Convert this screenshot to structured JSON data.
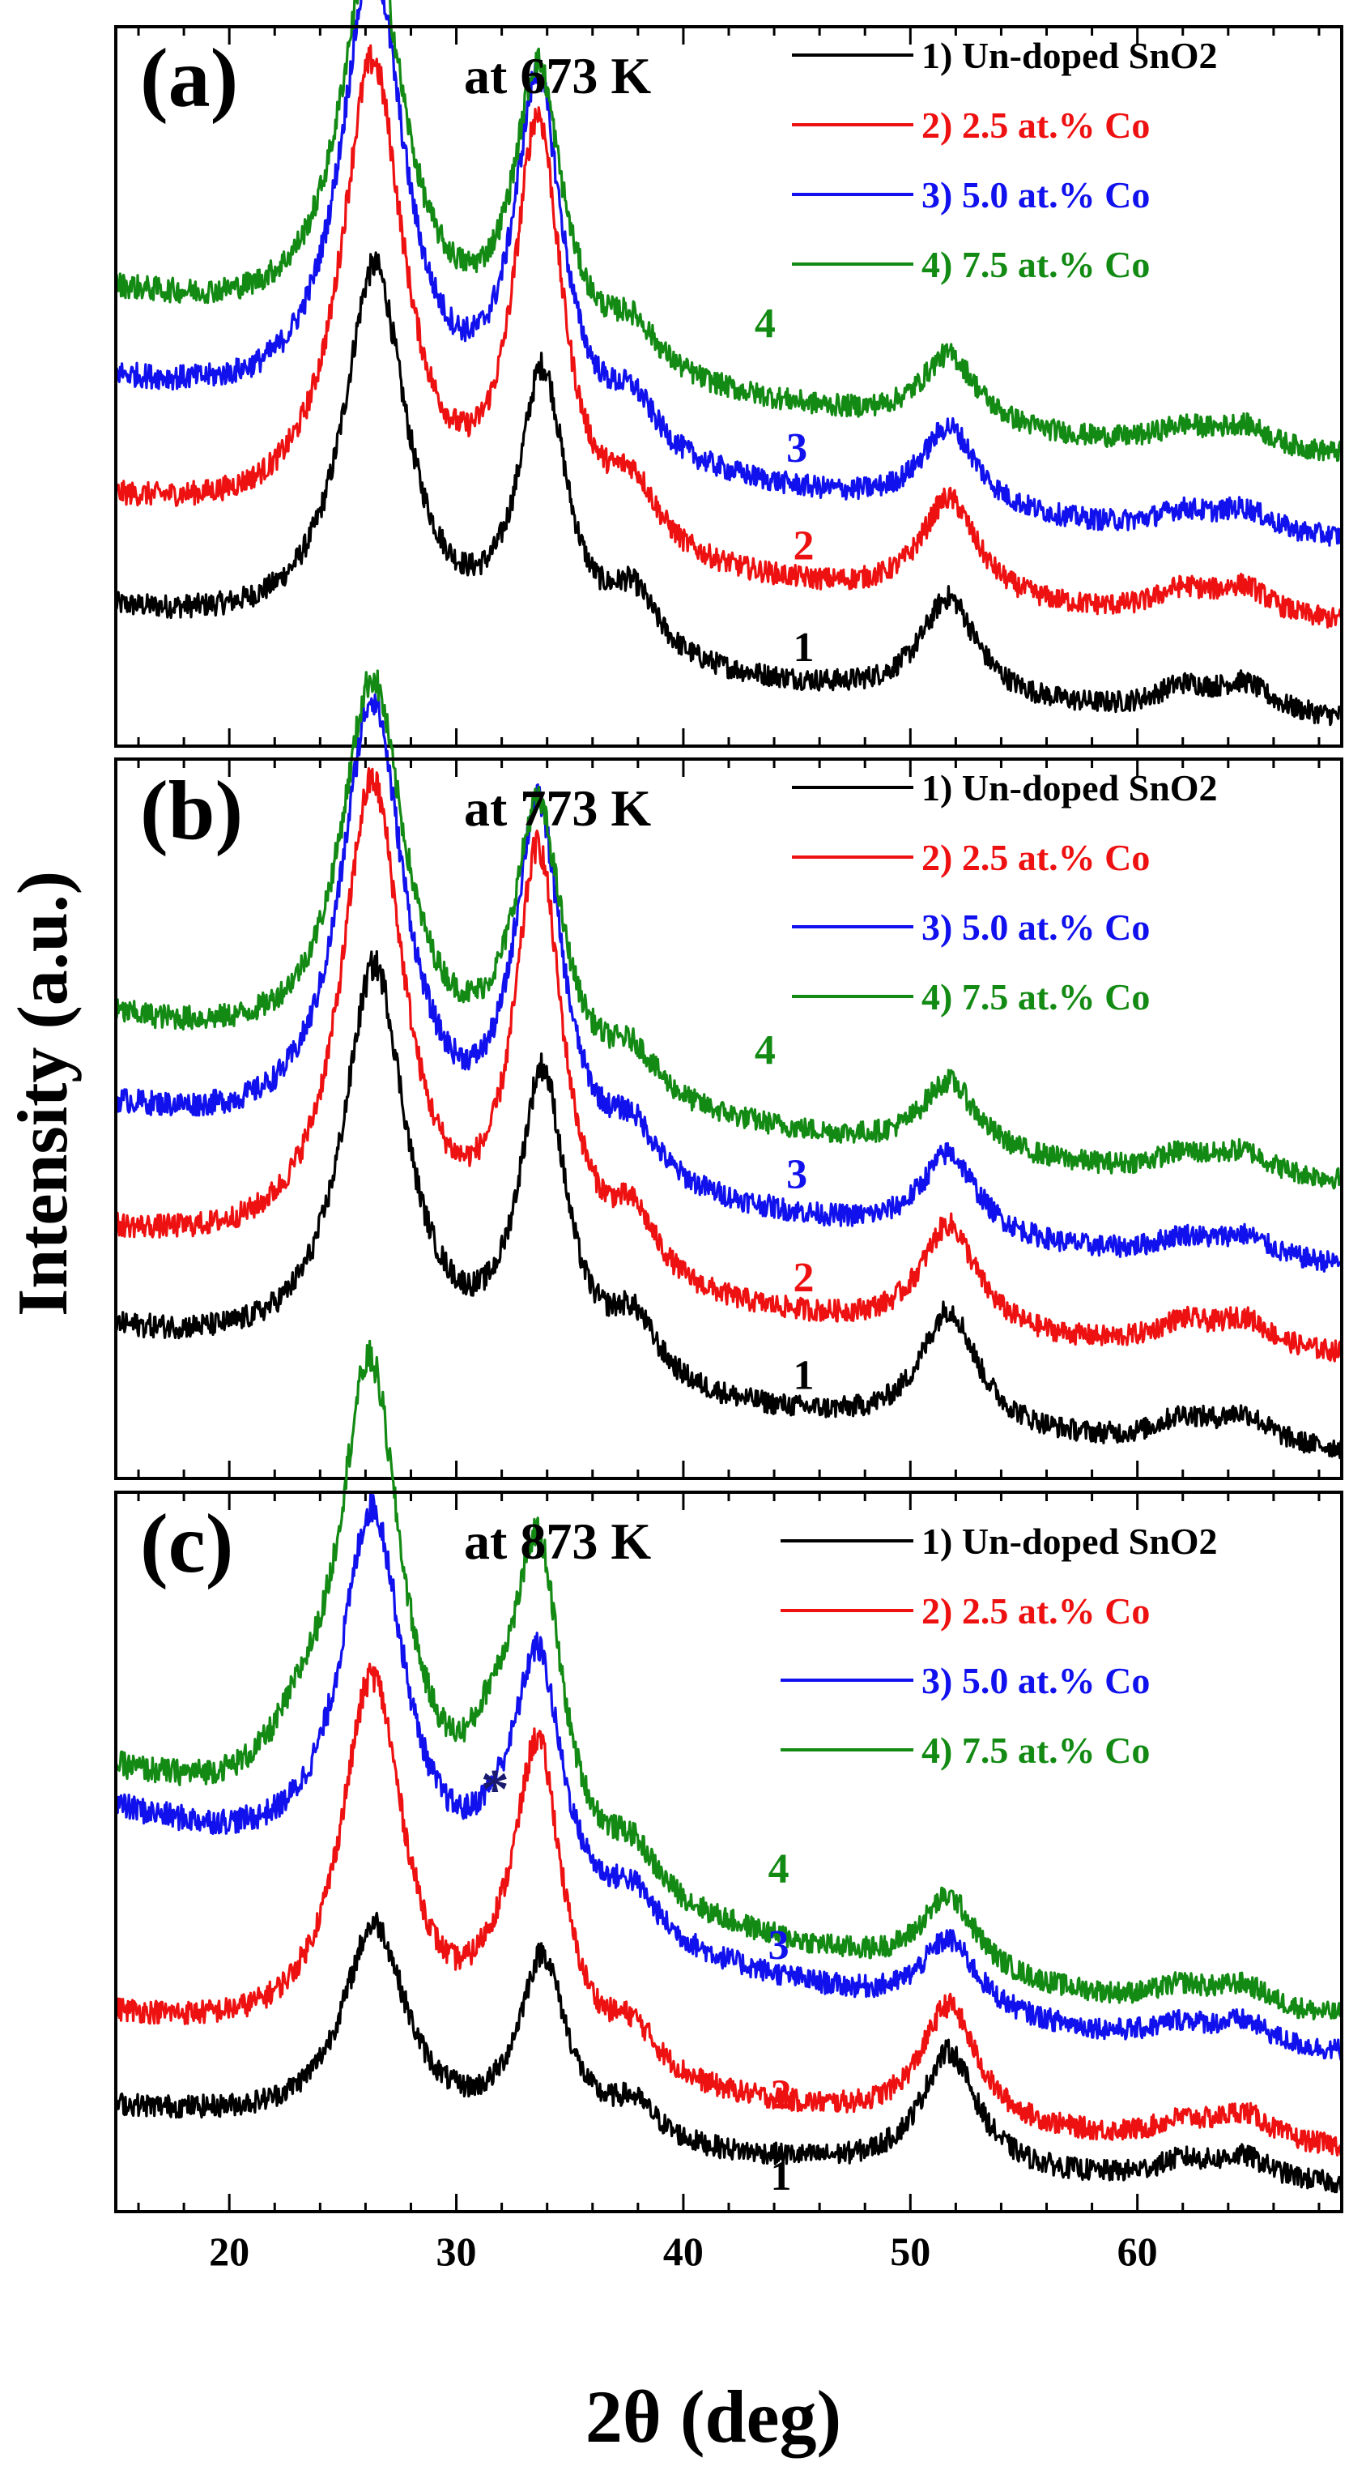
{
  "figure": {
    "ylabel": "Intensity (a.u.)",
    "xlabel": "2θ (deg)",
    "colors": {
      "series1": "#000000",
      "series2": "#ee1111",
      "series3": "#1111ee",
      "series4": "#138a13",
      "star": "#1a1a6e",
      "frame": "#000000"
    }
  },
  "chart_data": [
    {
      "type": "line",
      "panel_label": "(a)",
      "title": "at 673 K",
      "xlim": [
        15,
        69
      ],
      "x_ticks": [
        20,
        30,
        40,
        50,
        60
      ],
      "legend": [
        "1) Un-doped SnO2",
        "2) 2.5 at.% Co",
        "3) 5.0 at.% Co",
        "4) 7.5 at.% Co"
      ],
      "curve_labels": [
        "1",
        "2",
        "3",
        "4"
      ],
      "series": [
        {
          "name": "1) Un-doped SnO2",
          "offset": 0.0,
          "peaks": [
            [
              26.4,
              0.62
            ],
            [
              33.8,
              0.46
            ],
            [
              37.8,
              0.1
            ],
            [
              51.7,
              0.17
            ],
            [
              62.0,
              0.04
            ],
            [
              64.7,
              0.05
            ]
          ],
          "left_level": 0.18,
          "end_level": 0.0
        },
        {
          "name": "2) 2.5 at.% Co",
          "offset": 0.16,
          "peaks": [
            [
              26.3,
              0.78
            ],
            [
              33.6,
              0.7
            ],
            [
              37.8,
              0.1
            ],
            [
              51.7,
              0.17
            ],
            [
              62.0,
              0.04
            ],
            [
              64.7,
              0.05
            ]
          ],
          "left_level": 0.2,
          "end_level": 0.0
        },
        {
          "name": "3) 5.0 at.% Co",
          "offset": 0.3,
          "peaks": [
            [
              26.3,
              0.77
            ],
            [
              33.6,
              0.6
            ],
            [
              37.8,
              0.08
            ],
            [
              51.7,
              0.14
            ],
            [
              62.0,
              0.03
            ],
            [
              64.7,
              0.04
            ]
          ],
          "left_level": 0.26,
          "end_level": 0.0
        },
        {
          "name": "4) 7.5 at.% Co",
          "offset": 0.44,
          "peaks": [
            [
              26.3,
              0.66
            ],
            [
              33.6,
              0.48
            ],
            [
              37.8,
              0.07
            ],
            [
              51.7,
              0.12
            ],
            [
              62.0,
              0.03
            ],
            [
              64.7,
              0.04
            ]
          ],
          "left_level": 0.27,
          "end_level": 0.0
        }
      ]
    },
    {
      "type": "line",
      "panel_label": "(b)",
      "title": "at 773 K",
      "xlim": [
        15,
        69
      ],
      "x_ticks": [
        20,
        30,
        40,
        50,
        60
      ],
      "legend": [
        "1) Un-doped SnO2",
        "2) 2.5 at.% Co",
        "3) 5.0 at.% Co",
        "4) 7.5 at.% Co"
      ],
      "curve_labels": [
        "1",
        "2",
        "3",
        "4"
      ],
      "series": [
        {
          "name": "1) Un-doped SnO2",
          "offset": 0.0,
          "peaks": [
            [
              26.4,
              0.66
            ],
            [
              33.8,
              0.5
            ],
            [
              37.8,
              0.1
            ],
            [
              51.7,
              0.2
            ],
            [
              62.0,
              0.04
            ],
            [
              64.7,
              0.05
            ]
          ],
          "left_level": 0.2,
          "end_level": 0.0
        },
        {
          "name": "2) 2.5 at.% Co",
          "offset": 0.16,
          "peaks": [
            [
              26.3,
              0.8
            ],
            [
              33.6,
              0.7
            ],
            [
              37.8,
              0.1
            ],
            [
              51.7,
              0.18
            ],
            [
              62.0,
              0.04
            ],
            [
              64.7,
              0.05
            ]
          ],
          "left_level": 0.2,
          "end_level": 0.0
        },
        {
          "name": "3) 5.0 at.% Co",
          "offset": 0.31,
          "peaks": [
            [
              26.3,
              0.75
            ],
            [
              33.6,
              0.6
            ],
            [
              37.8,
              0.08
            ],
            [
              51.7,
              0.14
            ],
            [
              62.0,
              0.03
            ],
            [
              64.7,
              0.04
            ]
          ],
          "left_level": 0.26,
          "end_level": 0.0
        },
        {
          "name": "4) 7.5 at.% Co",
          "offset": 0.45,
          "peaks": [
            [
              26.3,
              0.64
            ],
            [
              33.6,
              0.46
            ],
            [
              37.8,
              0.07
            ],
            [
              51.7,
              0.12
            ],
            [
              62.0,
              0.03
            ],
            [
              64.7,
              0.04
            ]
          ],
          "left_level": 0.27,
          "end_level": 0.0
        }
      ]
    },
    {
      "type": "line",
      "panel_label": "(c)",
      "title": "at 873 K",
      "xlim": [
        15,
        69
      ],
      "x_ticks": [
        20,
        30,
        40,
        50,
        60
      ],
      "legend": [
        "1) Un-doped SnO2",
        "2) 2.5 at.% Co",
        "3) 5.0 at.% Co",
        "4) 7.5 at.% Co"
      ],
      "curve_labels": [
        "1",
        "2",
        "3",
        "4"
      ],
      "annotation": {
        "text": "*",
        "x": 31.7
      },
      "series": [
        {
          "name": "1) Un-doped SnO2",
          "offset": 0.0,
          "peaks": [
            [
              26.4,
              0.34
            ],
            [
              33.8,
              0.3
            ],
            [
              37.8,
              0.06
            ],
            [
              51.7,
              0.2
            ],
            [
              62.0,
              0.03
            ],
            [
              64.7,
              0.04
            ]
          ],
          "left_level": 0.13,
          "end_level": 0.0
        },
        {
          "name": "2) 2.5 at.% Co",
          "offset": 0.06,
          "peaks": [
            [
              26.3,
              0.62
            ],
            [
              33.6,
              0.52
            ],
            [
              31.6,
              0.05
            ],
            [
              37.8,
              0.07
            ],
            [
              51.7,
              0.2
            ],
            [
              62.0,
              0.03
            ],
            [
              64.7,
              0.05
            ]
          ],
          "left_level": 0.22,
          "end_level": 0.0
        },
        {
          "name": "3) 5.0 at.% Co",
          "offset": 0.22,
          "peaks": [
            [
              26.3,
              0.62
            ],
            [
              33.6,
              0.42
            ],
            [
              31.7,
              0.05
            ],
            [
              37.8,
              0.07
            ],
            [
              51.7,
              0.12
            ],
            [
              62.0,
              0.03
            ],
            [
              64.7,
              0.04
            ]
          ],
          "left_level": 0.4,
          "end_level": 0.0
        },
        {
          "name": "4) 7.5 at.% Co",
          "offset": 0.28,
          "peaks": [
            [
              26.2,
              0.78
            ],
            [
              33.6,
              0.52
            ],
            [
              31.7,
              0.12
            ],
            [
              23.2,
              0.08
            ],
            [
              37.8,
              0.07
            ],
            [
              51.7,
              0.13
            ],
            [
              62.0,
              0.03
            ],
            [
              64.7,
              0.04
            ]
          ],
          "left_level": 0.4,
          "end_level": 0.0
        }
      ]
    }
  ]
}
